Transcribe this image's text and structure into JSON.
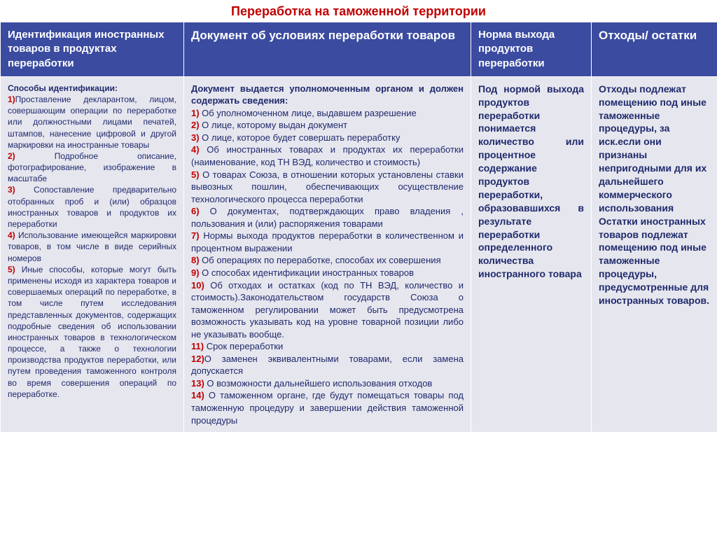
{
  "title": "Переработка на таможенной территории",
  "title_color": "#c00000",
  "title_fontsize": 18,
  "header_bg": "#3b4ba0",
  "header_fg": "#ffffff",
  "body_bg": "#e6e6ef",
  "body_fg": "#1f2a6b",
  "num_color": "#c00000",
  "columns": {
    "widths": [
      262,
      410,
      172,
      180
    ],
    "headers": [
      {
        "text": "Идентификация иностранных товаров в продуктах переработки",
        "fontsize": 15
      },
      {
        "text": "Документ об условиях переработки товаров",
        "fontsize": 17
      },
      {
        "text": "Норма выхода продуктов переработки",
        "fontsize": 15
      },
      {
        "text": "Отходы/ остатки",
        "fontsize": 17
      }
    ]
  },
  "col1": {
    "fontsize": 12,
    "intro": "Способы идентификации:",
    "items": [
      {
        "n": "1)",
        "t": "Проставление декларантом, лицом, совершающим операции по переработке или должностными лицами печатей, штампов, нанесение цифровой и другой маркировки на иностранные товары"
      },
      {
        "n": "2)",
        "t": " Подробное описание, фотографирование, изображение в масштабе"
      },
      {
        "n": "3)",
        "t": " Сопоставление предварительно отобранных проб и (или) образцов иностранных товаров и продуктов их переработки"
      },
      {
        "n": "4)",
        "t": " Использование имеющейся маркировки товаров, в том числе в виде серийных номеров"
      },
      {
        "n": "5)",
        "t": " Иные способы, которые могут быть применены исходя из характера товаров и совершаемых операций по переработке, в том числе путем исследования представленных документов, содержащих подробные сведения об использовании иностранных товаров в технологическом процессе, а также о технологии производства продуктов переработки, или путем проведения таможенного контроля во время совершения операций по переработке."
      }
    ]
  },
  "col2": {
    "fontsize": 13,
    "intro": "Документ выдается уполномоченным органом и должен содержать сведения:",
    "items": [
      {
        "n": "1)",
        "t": " Об уполномоченном лице, выдавшем разрешение"
      },
      {
        "n": "2)",
        "t": " О лице, которому выдан документ"
      },
      {
        "n": "3)",
        "t": " О лице, которое будет совершать переработку"
      },
      {
        "n": "4)",
        "t": " Об иностранных товарах и продуктах их переработки (наименование, код ТН ВЭД, количество и стоимость)"
      },
      {
        "n": "5)",
        "t": " О товарах Союза, в отношении которых установлены ставки вывозных пошлин, обеспечивающих осуществление технологического процесса переработки"
      },
      {
        "n": "6)",
        "t": " О документах, подтверждающих право владения , пользования и (или) распоряжения товарами"
      },
      {
        "n": "7)",
        "t": " Нормы выхода продуктов переработки в количественном и процентном выражении"
      },
      {
        "n": "8)",
        "t": " Об операциях по переработке, способах их совершения"
      },
      {
        "n": "9)",
        "t": " О способах идентификации иностранных товаров"
      },
      {
        "n": "10)",
        "t": " Об отходах и остатках (код по ТН ВЭД, количество и стоимость).Законодательством государств Союза о таможенном регулировании может быть предусмотрена возможность указывать код на уровне товарной позиции либо не указывать вообще."
      },
      {
        "n": "11)",
        "t": " Срок переработки"
      },
      {
        "n": "12)",
        "t": "О заменен эквивалентными товарами, если замена допускается"
      },
      {
        "n": "13)",
        "t": " О возможности дальнейшего использования отходов"
      },
      {
        "n": "14)",
        "t": " О таможенном органе, где будут помещаться товары под таможенную процедуру и завершении действия таможенной процедуры"
      }
    ]
  },
  "col3": {
    "fontsize": 14,
    "text": "Под нормой выхода продуктов переработки понимается количество или процентное содержание продуктов переработки, образовавшихся в результате переработки определенного количества иностранного товара"
  },
  "col4": {
    "fontsize": 14,
    "text": "Отходы подлежат помещению под иные таможенные процедуры, за иск.если они признаны непригодными для их дальнейшего коммерческого использования Остатки иностранных товаров подлежат помещению под иные таможенные процедуры, предусмотренные для иностранных товаров."
  }
}
